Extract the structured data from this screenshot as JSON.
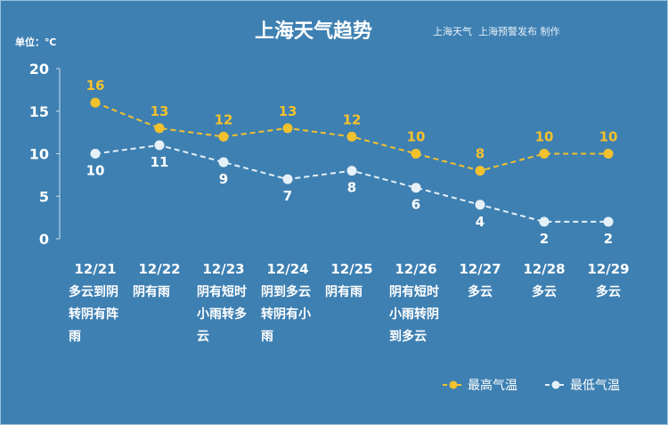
{
  "chart_data": {
    "type": "line",
    "title": "上海天气趋势",
    "subtitle": "上海天气  上海预警发布 制作",
    "ylabel": "单位：℃",
    "ylim": [
      0,
      20
    ],
    "yticks": [
      0,
      5,
      10,
      15,
      20
    ],
    "grid": false,
    "legend_placement": "bottom-right",
    "categories": [
      "12/21",
      "12/22",
      "12/23",
      "12/24",
      "12/25",
      "12/26",
      "12/27",
      "12/28",
      "12/29"
    ],
    "weather": [
      [
        "多云到阴",
        "转阴有阵",
        "雨"
      ],
      [
        "阴有雨"
      ],
      [
        "阴有短时",
        "小雨转多",
        "云"
      ],
      [
        "阴到多云",
        "转阴有小",
        "雨"
      ],
      [
        "阴有雨"
      ],
      [
        "阴有短时",
        "小雨转阴",
        "到多云"
      ],
      [
        "多云"
      ],
      [
        "多云"
      ],
      [
        "多云"
      ]
    ],
    "series": [
      {
        "name": "最高气温",
        "color": "#f2c12e",
        "values": [
          16,
          13,
          12,
          13,
          12,
          10,
          8,
          10,
          10
        ]
      },
      {
        "name": "最低气温",
        "color": "#e6f0f8",
        "values": [
          10,
          11,
          9,
          7,
          8,
          6,
          4,
          2,
          2
        ]
      }
    ]
  }
}
